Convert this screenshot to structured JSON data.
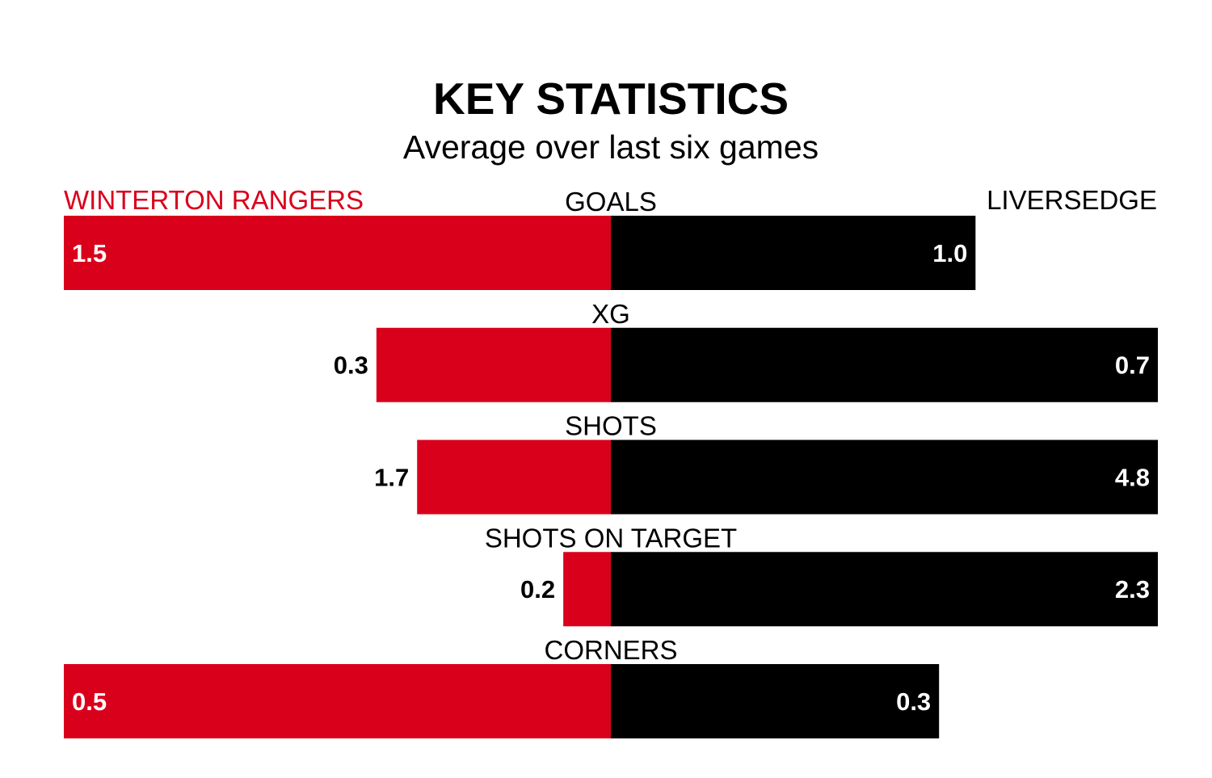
{
  "title": "KEY STATISTICS",
  "subtitle": "Average over last six games",
  "teams": {
    "left": "WINTERTON RANGERS",
    "right": "LIVERSEDGE"
  },
  "colors": {
    "left": "#d9001b",
    "right": "#000000",
    "label_inside": "#ffffff",
    "label_outside": "#000000"
  },
  "chart_data": {
    "type": "bar",
    "orientation": "horizontal-diverging",
    "categories": [
      "GOALS",
      "XG",
      "SHOTS",
      "SHOTS ON TARGET",
      "CORNERS"
    ],
    "series": [
      {
        "name": "WINTERTON RANGERS",
        "values": [
          1.5,
          0.3,
          1.7,
          0.2,
          0.5
        ]
      },
      {
        "name": "LIVERSEDGE",
        "values": [
          1.0,
          0.7,
          4.8,
          2.3,
          0.3
        ]
      }
    ],
    "value_labels": {
      "left": [
        "1.5",
        "0.3",
        "1.7",
        "0.2",
        "0.5"
      ],
      "right": [
        "1.0",
        "0.7",
        "4.8",
        "2.3",
        "0.3"
      ]
    },
    "scaling": "each row scaled to its larger value",
    "grid": false,
    "legend": "top, team names at left and right"
  }
}
